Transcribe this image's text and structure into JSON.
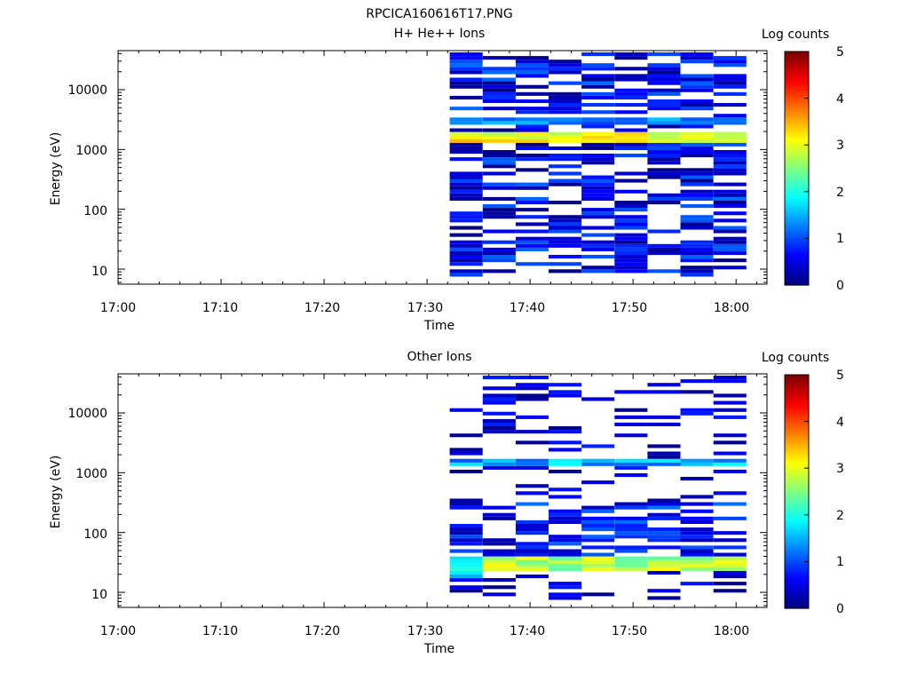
{
  "figure_title": "RPCICA160616T17.PNG",
  "chart_data": [
    {
      "type": "heatmap",
      "title": "H+ He++ Ions",
      "xlabel": "Time",
      "ylabel": "Energy (eV)",
      "x_ticks": [
        "17:00",
        "17:10",
        "17:20",
        "17:30",
        "17:40",
        "17:50",
        "18:00"
      ],
      "x_range_minutes": [
        0,
        63
      ],
      "y_scale": "log",
      "y_ticks": [
        "10",
        "100",
        "1000",
        "10000"
      ],
      "y_range": [
        5.6,
        45000
      ],
      "colorbar": {
        "label": "Log counts",
        "min": 0,
        "max": 5,
        "ticks": [
          "0",
          "1",
          "2",
          "3",
          "4",
          "5"
        ]
      },
      "time_bins_minutes": [
        32.2,
        35.4,
        38.6,
        41.8,
        45.0,
        48.2,
        51.4,
        54.6,
        57.8,
        61.0
      ],
      "data_summary": "Data starts near 17:32; strongest band near 1500 eV (log counts 3-3.6, peaking around 17:42 and 17:53); moderate band near 3000 eV (~1-1.5); elsewhere sparse low counts 0-1.2 from ~8 eV to ~40000 eV."
    },
    {
      "type": "heatmap",
      "title": "Other Ions",
      "xlabel": "Time",
      "ylabel": "Energy (eV)",
      "x_ticks": [
        "17:00",
        "17:10",
        "17:20",
        "17:30",
        "17:40",
        "17:50",
        "18:00"
      ],
      "x_range_minutes": [
        0,
        63
      ],
      "y_scale": "log",
      "y_ticks": [
        "10",
        "100",
        "1000",
        "10000"
      ],
      "y_range": [
        5.6,
        45000
      ],
      "colorbar": {
        "label": "Log counts",
        "min": 0,
        "max": 5,
        "ticks": [
          "0",
          "1",
          "2",
          "3",
          "4",
          "5"
        ]
      },
      "time_bins_minutes": [
        32.2,
        35.4,
        38.6,
        41.8,
        45.0,
        48.2,
        51.4,
        54.6,
        57.8,
        61.0
      ],
      "data_summary": "Data starts near 17:32; strongest band near 25-35 eV (log counts 2.5-3.3 from ~17:35 to 18:01); secondary band near 1500 eV (~1.3-2); sparse low counts elsewhere up to ~35000 eV."
    }
  ]
}
